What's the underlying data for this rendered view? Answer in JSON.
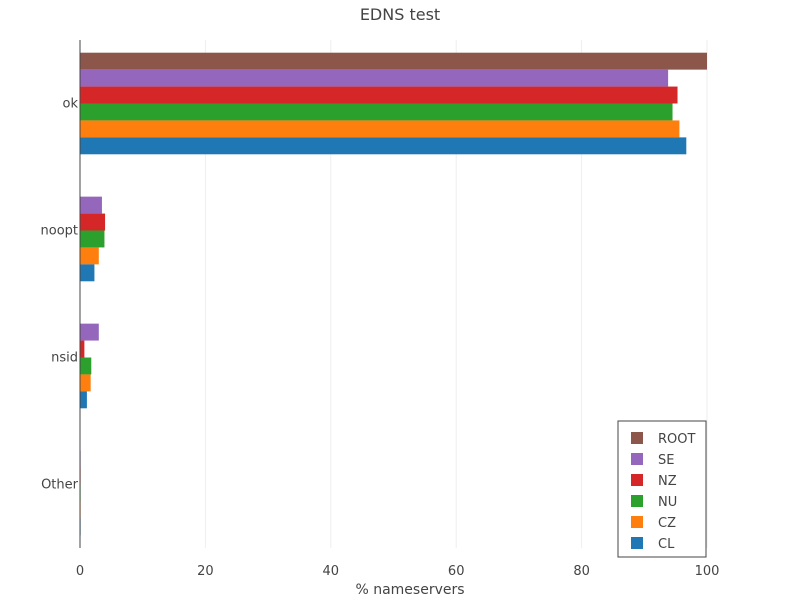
{
  "chart_data": {
    "type": "bar",
    "orientation": "horizontal",
    "title": "EDNS test",
    "xlabel": "% nameservers",
    "ylabel": "",
    "xlim": [
      0,
      100
    ],
    "x_ticks": [
      "0",
      "20",
      "40",
      "60",
      "80",
      "100"
    ],
    "categories": [
      "ok",
      "noopt",
      "nsid",
      "Other"
    ],
    "grid": "vertical",
    "legend_position": "bottom-right",
    "series": [
      {
        "name": "ROOT",
        "color": "#8c564b",
        "values": [
          100,
          0,
          0,
          0
        ]
      },
      {
        "name": "SE",
        "color": "#9467bd",
        "values": [
          93.8,
          3.5,
          3.0,
          0.1
        ]
      },
      {
        "name": "NZ",
        "color": "#d62728",
        "values": [
          95.3,
          4.0,
          0.7,
          0.1
        ]
      },
      {
        "name": "NU",
        "color": "#2ca02c",
        "values": [
          94.5,
          3.9,
          1.8,
          0.1
        ]
      },
      {
        "name": "CZ",
        "color": "#ff7f0e",
        "values": [
          95.6,
          3.0,
          1.7,
          0.1
        ]
      },
      {
        "name": "CL",
        "color": "#1f77b4",
        "values": [
          96.7,
          2.3,
          1.1,
          0.1
        ]
      }
    ]
  }
}
